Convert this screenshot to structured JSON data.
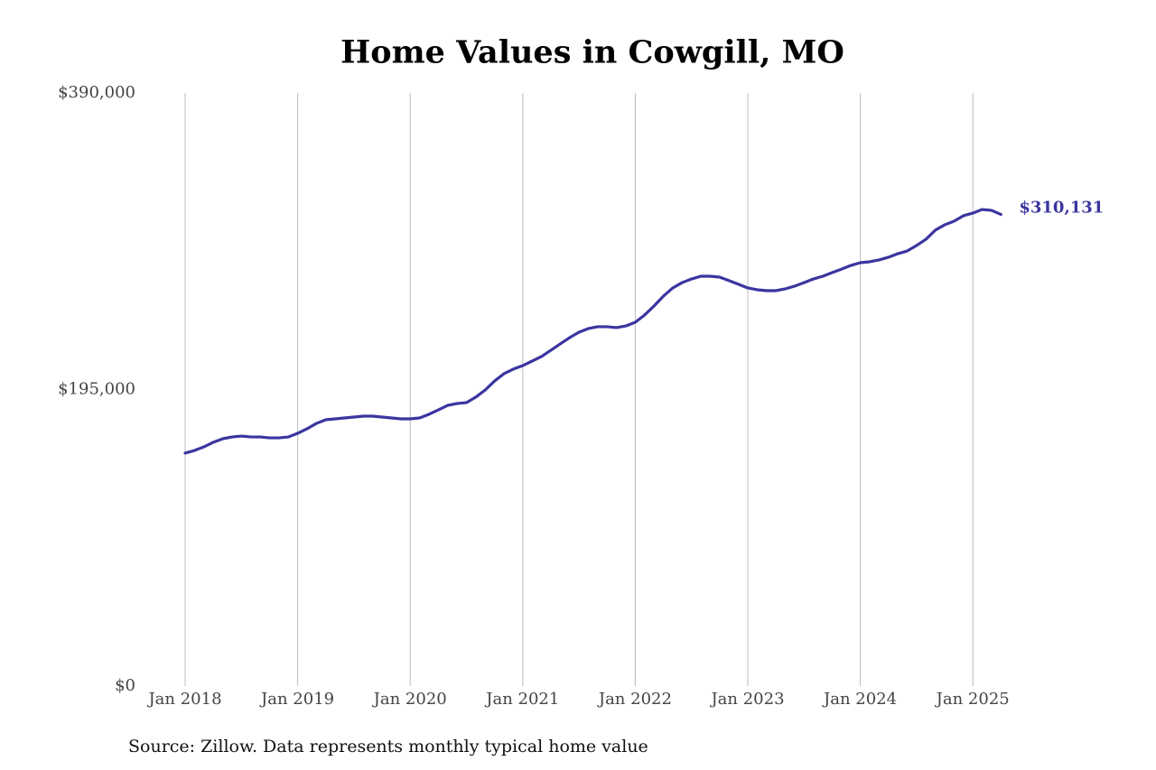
{
  "chart_data": {
    "type": "line",
    "title": "Home Values in Cowgill, MO",
    "source": "Source: Zillow. Data represents monthly typical home value",
    "x": [
      "2018-01",
      "2018-02",
      "2018-03",
      "2018-04",
      "2018-05",
      "2018-06",
      "2018-07",
      "2018-08",
      "2018-09",
      "2018-10",
      "2018-11",
      "2018-12",
      "2019-01",
      "2019-02",
      "2019-03",
      "2019-04",
      "2019-05",
      "2019-06",
      "2019-07",
      "2019-08",
      "2019-09",
      "2019-10",
      "2019-11",
      "2019-12",
      "2020-01",
      "2020-02",
      "2020-03",
      "2020-04",
      "2020-05",
      "2020-06",
      "2020-07",
      "2020-08",
      "2020-09",
      "2020-10",
      "2020-11",
      "2020-12",
      "2021-01",
      "2021-02",
      "2021-03",
      "2021-04",
      "2021-05",
      "2021-06",
      "2021-07",
      "2021-08",
      "2021-09",
      "2021-10",
      "2021-11",
      "2021-12",
      "2022-01",
      "2022-02",
      "2022-03",
      "2022-04",
      "2022-05",
      "2022-06",
      "2022-07",
      "2022-08",
      "2022-09",
      "2022-10",
      "2022-11",
      "2022-12",
      "2023-01",
      "2023-02",
      "2023-03",
      "2023-04",
      "2023-05",
      "2023-06",
      "2023-07",
      "2023-08",
      "2023-09",
      "2023-10",
      "2023-11",
      "2023-12",
      "2024-01",
      "2024-02",
      "2024-03",
      "2024-04",
      "2024-05",
      "2024-06",
      "2024-07",
      "2024-08",
      "2024-09",
      "2024-10",
      "2024-11",
      "2024-12",
      "2025-01",
      "2025-02",
      "2025-03",
      "2025-04"
    ],
    "series": [
      {
        "name": "Home value",
        "color": "#3b35a0",
        "values": [
          153200,
          154900,
          157300,
          160300,
          162600,
          163800,
          164400,
          163800,
          163800,
          163200,
          163200,
          163800,
          166200,
          169200,
          172700,
          175100,
          175700,
          176300,
          176900,
          177500,
          177500,
          176900,
          176300,
          175700,
          175700,
          176300,
          178700,
          181600,
          184600,
          185800,
          186400,
          190000,
          194700,
          200600,
          205400,
          208400,
          210700,
          213700,
          216700,
          220800,
          225000,
          229100,
          232700,
          235100,
          236300,
          236300,
          235700,
          236800,
          239200,
          244000,
          249900,
          256400,
          261800,
          265300,
          267700,
          269500,
          269500,
          268900,
          266600,
          264200,
          261800,
          260600,
          260000,
          260000,
          261200,
          263000,
          265300,
          267700,
          269500,
          271900,
          274200,
          276600,
          278400,
          279000,
          280200,
          282000,
          284300,
          286100,
          289700,
          293800,
          299800,
          303300,
          305700,
          309300,
          311000,
          313400,
          312800,
          310131
        ],
        "value_labels": [
          null,
          null,
          null,
          null,
          null,
          null,
          null,
          null,
          null,
          null,
          null,
          null,
          null,
          null,
          null,
          null,
          null,
          null,
          null,
          null,
          null,
          null,
          null,
          null,
          null,
          null,
          null,
          null,
          null,
          null,
          null,
          null,
          null,
          null,
          null,
          null,
          null,
          null,
          null,
          null,
          null,
          null,
          null,
          null,
          null,
          null,
          null,
          null,
          null,
          null,
          null,
          null,
          null,
          null,
          null,
          null,
          null,
          null,
          null,
          null,
          null,
          null,
          null,
          null,
          null,
          null,
          null,
          null,
          null,
          null,
          null,
          null,
          null,
          null,
          null,
          null,
          null,
          null,
          null,
          null,
          null,
          null,
          null,
          null,
          null,
          null,
          null,
          "$310,131"
        ]
      }
    ],
    "ylim": [
      0,
      390000
    ],
    "yticks": [
      {
        "value": 0,
        "label": "$0"
      },
      {
        "value": 195000,
        "label": "$195,000"
      },
      {
        "value": 390000,
        "label": "$390,000"
      }
    ],
    "xticks": [
      {
        "value": "2018-01",
        "label": "Jan 2018"
      },
      {
        "value": "2019-01",
        "label": "Jan 2019"
      },
      {
        "value": "2020-01",
        "label": "Jan 2020"
      },
      {
        "value": "2021-01",
        "label": "Jan 2021"
      },
      {
        "value": "2022-01",
        "label": "Jan 2022"
      },
      {
        "value": "2023-01",
        "label": "Jan 2023"
      },
      {
        "value": "2024-01",
        "label": "Jan 2024"
      },
      {
        "value": "2025-01",
        "label": "Jan 2025"
      }
    ],
    "grid": "x"
  }
}
